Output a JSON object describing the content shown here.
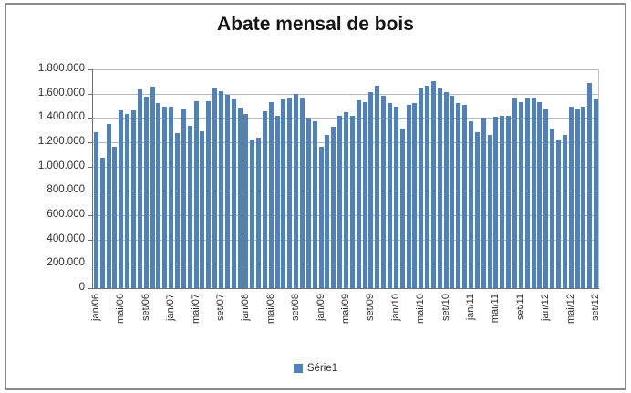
{
  "title": "Abate mensal de bois",
  "legend": {
    "label": "Série1",
    "color": "#4f81bd"
  },
  "colors": {
    "bar": "#4f81bd",
    "gridline": "#b8b8b8",
    "axis": "#6f6f6f",
    "frame_border": "#8a8a8a",
    "background": "#ffffff",
    "text": "#2e2e2e"
  },
  "chart_data": {
    "type": "bar",
    "title": "Abate mensal de bois",
    "series_name": "Série1",
    "xlabel": "",
    "ylabel": "",
    "ylim": [
      0,
      1800000
    ],
    "y_tick_step": 200000,
    "grid": "horizontal",
    "legend_position": "bottom",
    "x_tick_every": 4,
    "y_tick_labels": [
      "1.800.000",
      "1.600.000",
      "1.400.000",
      "1.200.000",
      "1.000.000",
      "800.000",
      "600.000",
      "400.000",
      "200.000",
      "0"
    ],
    "x_tick_labels": [
      "jan/06",
      "mai/06",
      "set/06",
      "jan/07",
      "mai/07",
      "set/07",
      "jan/08",
      "mai/08",
      "set/08",
      "jan/09",
      "mai/09",
      "set/09",
      "jan/10",
      "mai/10",
      "set/10",
      "jan/11",
      "mai/11",
      "set/11",
      "jan/12",
      "mai/12",
      "set/12"
    ],
    "x": [
      "jan/06",
      "fev/06",
      "mar/06",
      "abr/06",
      "mai/06",
      "jun/06",
      "jul/06",
      "ago/06",
      "set/06",
      "out/06",
      "nov/06",
      "dez/06",
      "jan/07",
      "fev/07",
      "mar/07",
      "abr/07",
      "mai/07",
      "jun/07",
      "jul/07",
      "ago/07",
      "set/07",
      "out/07",
      "nov/07",
      "dez/07",
      "jan/08",
      "fev/08",
      "mar/08",
      "abr/08",
      "mai/08",
      "jun/08",
      "jul/08",
      "ago/08",
      "set/08",
      "out/08",
      "nov/08",
      "dez/08",
      "jan/09",
      "fev/09",
      "mar/09",
      "abr/09",
      "mai/09",
      "jun/09",
      "jul/09",
      "ago/09",
      "set/09",
      "out/09",
      "nov/09",
      "dez/09",
      "jan/10",
      "fev/10",
      "mar/10",
      "abr/10",
      "mai/10",
      "jun/10",
      "jul/10",
      "ago/10",
      "set/10",
      "out/10",
      "nov/10",
      "dez/10",
      "jan/11",
      "fev/11",
      "mar/11",
      "abr/11",
      "mai/11",
      "jun/11",
      "jul/11",
      "ago/11",
      "set/11",
      "out/11",
      "nov/11",
      "dez/11",
      "jan/12",
      "fev/12",
      "mar/12",
      "abr/12",
      "mai/12",
      "jun/12",
      "jul/12",
      "ago/12",
      "set/12"
    ],
    "values": [
      1285000,
      1075000,
      1350000,
      1165000,
      1460000,
      1430000,
      1465000,
      1635000,
      1575000,
      1660000,
      1520000,
      1495000,
      1495000,
      1275000,
      1470000,
      1335000,
      1535000,
      1290000,
      1540000,
      1650000,
      1620000,
      1590000,
      1550000,
      1485000,
      1430000,
      1220000,
      1240000,
      1455000,
      1530000,
      1415000,
      1555000,
      1560000,
      1595000,
      1560000,
      1400000,
      1370000,
      1160000,
      1260000,
      1330000,
      1420000,
      1445000,
      1415000,
      1545000,
      1530000,
      1615000,
      1665000,
      1580000,
      1520000,
      1490000,
      1310000,
      1510000,
      1520000,
      1640000,
      1665000,
      1700000,
      1650000,
      1610000,
      1580000,
      1525000,
      1510000,
      1370000,
      1280000,
      1400000,
      1260000,
      1410000,
      1420000,
      1420000,
      1560000,
      1530000,
      1560000,
      1565000,
      1530000,
      1470000,
      1310000,
      1220000,
      1260000,
      1490000,
      1470000,
      1490000,
      1685000,
      1555000
    ]
  }
}
